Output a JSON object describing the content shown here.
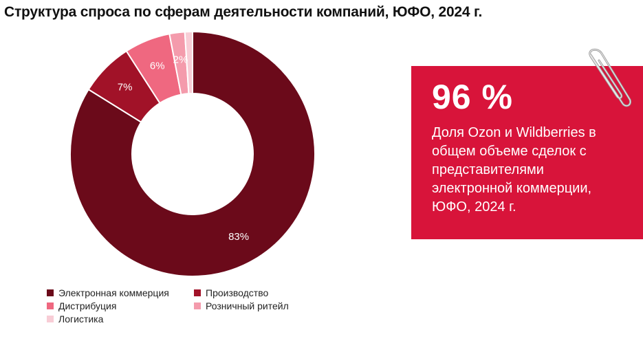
{
  "header": {
    "title": "Структура спроса по сферам деятельности компаний, ЮФО, 2024 г."
  },
  "callout": {
    "stat": "96 %",
    "text": "Доля Ozon и Wildberries в общем объеме сделок с представителями электронной коммерции, ЮФО, 2024 г."
  },
  "chart_data": {
    "type": "pie",
    "variant": "donut",
    "title": "Структура спроса по сферам деятельности компаний, ЮФО, 2024 г.",
    "categories": [
      "Электронная коммерция",
      "Производство",
      "Дистрибуция",
      "Розничный ритейл",
      "Логистика"
    ],
    "values": [
      83,
      7,
      6,
      2,
      1
    ],
    "labels": [
      "83%",
      "7%",
      "6%",
      "2%",
      ""
    ],
    "colors": [
      "#6b0a1a",
      "#a11228",
      "#ef6880",
      "#f49bac",
      "#f8cdd6"
    ],
    "legend_position": "bottom-left"
  }
}
